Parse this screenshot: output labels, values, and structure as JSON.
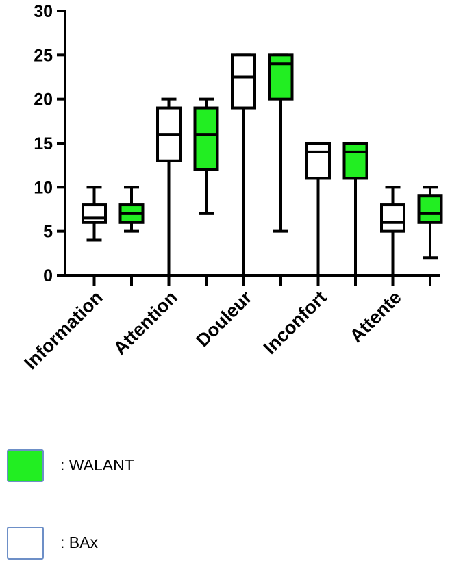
{
  "chart_data": {
    "type": "box",
    "categories": [
      "Information",
      "Attention",
      "Douleur",
      "Inconfort",
      "Attente"
    ],
    "ylim": [
      0,
      30
    ],
    "yticks": [
      0,
      5,
      10,
      15,
      20,
      25,
      30
    ],
    "grid": false,
    "series": [
      {
        "name": "BAx",
        "color": "#ffffff",
        "boxes": [
          {
            "min": 4,
            "q1": 6,
            "median": 6.5,
            "q3": 8,
            "max": 10
          },
          {
            "min": 0,
            "q1": 13,
            "median": 16,
            "q3": 19,
            "max": 20
          },
          {
            "min": 0,
            "q1": 19,
            "median": 22.5,
            "q3": 25,
            "max": 25
          },
          {
            "min": 0,
            "q1": 11,
            "median": 14,
            "q3": 15,
            "max": 15
          },
          {
            "min": 0,
            "q1": 5,
            "median": 6,
            "q3": 8,
            "max": 10
          }
        ]
      },
      {
        "name": "WALANT",
        "color": "#22ee22",
        "boxes": [
          {
            "min": 5,
            "q1": 6,
            "median": 7,
            "q3": 8,
            "max": 10
          },
          {
            "min": 7,
            "q1": 12,
            "median": 16,
            "q3": 19,
            "max": 20
          },
          {
            "min": 5,
            "q1": 20,
            "median": 24,
            "q3": 25,
            "max": 25
          },
          {
            "min": 0,
            "q1": 11,
            "median": 14,
            "q3": 15,
            "max": 15
          },
          {
            "min": 2,
            "q1": 6,
            "median": 7,
            "q3": 9,
            "max": 10
          }
        ]
      }
    ]
  },
  "legend": {
    "walant": {
      "label": ": WALANT",
      "color": "#22ee22"
    },
    "bax": {
      "label": ": BAx",
      "color": "#ffffff"
    }
  }
}
